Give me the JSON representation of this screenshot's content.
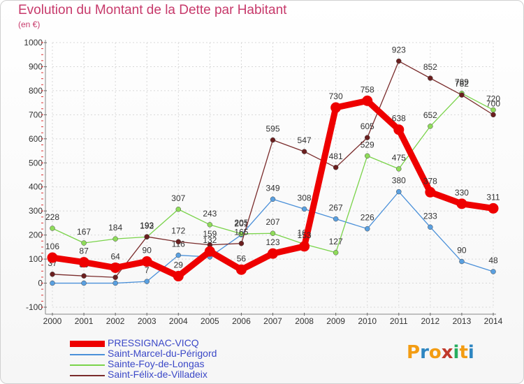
{
  "title": "Evolution du Montant de la Dette par Habitant",
  "unit": "(en €)",
  "logo": {
    "letters": [
      "P",
      "r",
      "o",
      "x",
      "i",
      "t",
      "i"
    ],
    "colors": [
      "#f39c12",
      "#2e86c1",
      "#f39c12",
      "#c0392b",
      "#27ae60",
      "#f39c12",
      "#2e86c1"
    ]
  },
  "chart_data": {
    "type": "line",
    "x": [
      "2000",
      "2001",
      "2002",
      "2003",
      "2004",
      "2005",
      "2006",
      "2007",
      "2008",
      "2009",
      "2010",
      "2011",
      "2012",
      "2013",
      "2014"
    ],
    "ylim": [
      -100,
      1000
    ],
    "yticks": [
      -100,
      0,
      100,
      200,
      300,
      400,
      500,
      600,
      700,
      800,
      900,
      1000
    ],
    "grid": true,
    "legend_position": "bottom-left",
    "series": [
      {
        "name": "Saint-Marcel-du-Périgord",
        "color": "#4a90d9",
        "marker": "#5aa0e0",
        "values": [
          0,
          0,
          0,
          7,
          116,
          109,
          201,
          349,
          308,
          267,
          226,
          380,
          233,
          90,
          48
        ],
        "labels": [
          "",
          "",
          "",
          "7",
          "116",
          "",
          "201",
          "349",
          "308",
          "267",
          "226",
          "380",
          "233",
          "90",
          "48"
        ]
      },
      {
        "name": "Sainte-Foy-de-Longas",
        "color": "#7ad34a",
        "marker": "#8fdc5a",
        "values": [
          228,
          167,
          184,
          192,
          307,
          243,
          205,
          207,
          162,
          127,
          529,
          475,
          652,
          789,
          720
        ],
        "labels": [
          "228",
          "167",
          "184",
          "192",
          "307",
          "243",
          "205",
          "207",
          "162",
          "127",
          "529",
          "475",
          "652",
          "789",
          "720"
        ]
      },
      {
        "name": "Saint-Félix-de-Villadeix",
        "color": "#7a2c2c",
        "marker": "#6b1f1f",
        "values": [
          37,
          30,
          24,
          193,
          172,
          159,
          165,
          595,
          547,
          481,
          605,
          923,
          852,
          782,
          700
        ],
        "labels": [
          "37",
          "30",
          "24",
          "193",
          "172",
          "159",
          "165",
          "595",
          "547",
          "481",
          "605",
          "923",
          "852",
          "782",
          "700"
        ]
      },
      {
        "name": "PRESSIGNAC-VICQ",
        "color": "#ee0000",
        "marker": "#ee0000",
        "values": [
          106,
          87,
          64,
          90,
          29,
          132,
          56,
          123,
          153,
          730,
          758,
          638,
          378,
          330,
          311
        ],
        "labels": [
          "106",
          "87",
          "64",
          "90",
          "29",
          "132",
          "56",
          "123",
          "153",
          "730",
          "758",
          "638",
          "378",
          "330",
          "311"
        ]
      }
    ],
    "legend_order": [
      "PRESSIGNAC-VICQ",
      "Saint-Marcel-du-Périgord",
      "Sainte-Foy-de-Longas",
      "Saint-Félix-de-Villadeix"
    ]
  }
}
